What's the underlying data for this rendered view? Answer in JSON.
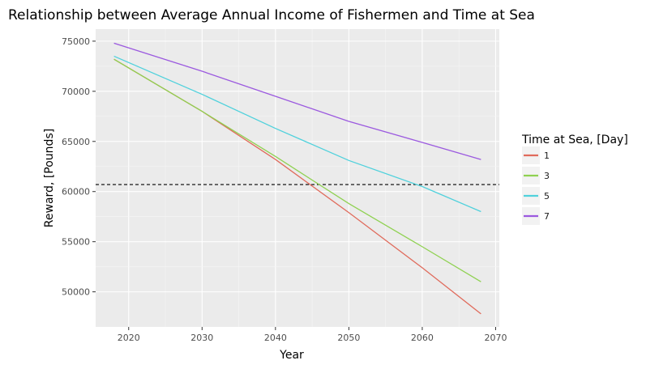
{
  "chart_data": {
    "type": "line",
    "title": "Relationship between Average Annual Income of Fishermen and Time at Sea",
    "xlabel": "Year",
    "ylabel": "Reward, [Pounds]",
    "xlim": [
      2015.5,
      2070.5
    ],
    "ylim": [
      46500,
      76200
    ],
    "x_ticks": [
      2020,
      2030,
      2040,
      2050,
      2060,
      2070
    ],
    "y_ticks": [
      50000,
      55000,
      60000,
      65000,
      70000,
      75000
    ],
    "x": [
      2018,
      2030,
      2040,
      2050,
      2060,
      2068
    ],
    "series": [
      {
        "name": "1",
        "color": "#e06b5c",
        "values": [
          73200,
          68000,
          63200,
          57900,
          52400,
          47800
        ]
      },
      {
        "name": "3",
        "color": "#8fd151",
        "values": [
          73200,
          68000,
          63500,
          58800,
          54500,
          51000
        ]
      },
      {
        "name": "5",
        "color": "#4fd1dc",
        "values": [
          73500,
          69700,
          66300,
          63100,
          60500,
          58000
        ]
      },
      {
        "name": "7",
        "color": "#9b59df",
        "values": [
          74800,
          72000,
          69500,
          67000,
          64900,
          63200
        ]
      }
    ],
    "reference_line": {
      "y": 60700,
      "style": "dashed",
      "color": "#000000"
    },
    "legend": {
      "title": "Time at Sea, [Day]",
      "position": "right"
    },
    "grid": true,
    "panel_color": "#ebebeb"
  }
}
